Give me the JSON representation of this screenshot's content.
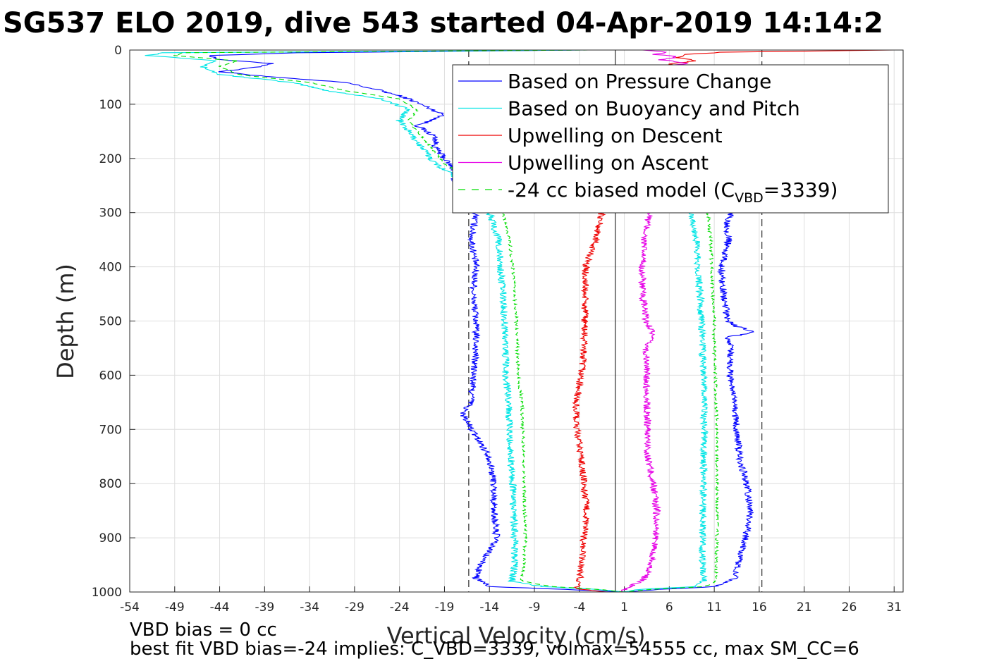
{
  "chart_data": {
    "type": "line",
    "title": "SG537 ELO 2019, dive 543 started 04-Apr-2019 14:14:2",
    "xlabel": "Vertical Velocity (cm/s)",
    "ylabel": "Depth (m)",
    "xlim": [
      -54,
      32
    ],
    "ylim": [
      0,
      1000
    ],
    "y_reversed": true,
    "x_ticks": [
      -54,
      -49,
      -44,
      -39,
      -34,
      -29,
      -24,
      -19,
      -14,
      -9,
      -4,
      1,
      6,
      11,
      16,
      21,
      26,
      31
    ],
    "y_ticks": [
      0,
      100,
      200,
      300,
      400,
      500,
      600,
      700,
      800,
      900,
      1000
    ],
    "grid": true,
    "legend_position": "top-right",
    "reference_lines": [
      {
        "x": -16.3,
        "style": "dashed"
      },
      {
        "x": 0,
        "style": "solid"
      },
      {
        "x": 16.3,
        "style": "dashed"
      }
    ],
    "series": [
      {
        "name": "Based on Pressure Change",
        "color": "#0000ff",
        "style": "solid",
        "segments": [
          {
            "depth": [
              0,
              5,
              10,
              18,
              25,
              32,
              40,
              50,
              60,
              75,
              90,
              105,
              120,
              140,
              160,
              180,
              200,
              220,
              240,
              250,
              270,
              290,
              300,
              350,
              400,
              450,
              500,
              550,
              600,
              650,
              670,
              700,
              750,
              800,
              850,
              900,
              950,
              975,
              990,
              995,
              1000
            ],
            "velocity": [
              -4,
              -35,
              -45,
              -44,
              -38,
              -40,
              -44,
              -38,
              -30,
              -26,
              -23,
              -21,
              -19,
              -22,
              -20,
              -20,
              -19,
              -18,
              -18,
              -17,
              -16,
              -15,
              -15.5,
              -16,
              -15.5,
              -15.8,
              -15.5,
              -15.5,
              -15.8,
              -16,
              -17,
              -16,
              -14,
              -13.5,
              -13.5,
              -13.2,
              -15,
              -15.5,
              -14,
              -6,
              1
            ]
          },
          {
            "depth": [
              300,
              320,
              350,
              400,
              450,
              500,
              510,
              520,
              530,
              550,
              600,
              650,
              700,
              750,
              800,
              850,
              900,
              950,
              975,
              990,
              995,
              1000
            ],
            "velocity": [
              12.8,
              12.5,
              12.6,
              11.8,
              12,
              12.5,
              13.5,
              15.5,
              12.5,
              12.8,
              12.8,
              13.2,
              13.5,
              13.8,
              14.6,
              15,
              14.5,
              13.6,
              13.4,
              11.2,
              5,
              1
            ]
          }
        ]
      },
      {
        "name": "Based on Buoyancy and Pitch",
        "color": "#00e5e5",
        "style": "solid",
        "segments": [
          {
            "depth": [
              0,
              5,
              10,
              20,
              30,
              45,
              60,
              75,
              90,
              110,
              130,
              150,
              170,
              190,
              210,
              230,
              250,
              270,
              300,
              350,
              400,
              450,
              500,
              550,
              600,
              650,
              700,
              750,
              800,
              850,
              900,
              950,
              980,
              990,
              995,
              1000
            ],
            "velocity": [
              -3,
              -50,
              -52,
              -44,
              -46,
              -44,
              -36,
              -32,
              -26,
              -23,
              -24,
              -23,
              -22,
              -21,
              -20,
              -18,
              -17,
              -15,
              -14,
              -13,
              -12.8,
              -12.5,
              -12.3,
              -12.2,
              -12.2,
              -11.8,
              -11.8,
              -11.6,
              -11.4,
              -11.3,
              -11.2,
              -11.2,
              -11.5,
              -8,
              -2,
              1
            ]
          },
          {
            "depth": [
              300,
              350,
              400,
              450,
              500,
              550,
              600,
              650,
              700,
              750,
              800,
              850,
              900,
              950,
              980,
              990,
              995,
              1000
            ],
            "velocity": [
              8.5,
              9,
              9.2,
              9.4,
              9.6,
              9.7,
              9.8,
              9.9,
              9.9,
              9.8,
              9.8,
              9.7,
              9.7,
              9.7,
              9.8,
              9,
              3,
              0.5
            ]
          }
        ]
      },
      {
        "name": "Upwelling on Descent",
        "color": "#ee0000",
        "style": "solid",
        "segments": [
          {
            "depth": [
              300,
              350,
              400,
              450,
              500,
              550,
              600,
              650,
              700,
              750,
              800,
              850,
              900,
              950,
              980,
              990,
              995,
              1000
            ],
            "velocity": [
              -1.5,
              -2.2,
              -3.3,
              -3.4,
              -3.4,
              -3.5,
              -3.8,
              -4.4,
              -4.3,
              -3.8,
              -3.5,
              -3.2,
              -3.5,
              -3.8,
              -4,
              -4.2,
              -4,
              -1
            ]
          },
          {
            "depth": [
              0,
              4,
              8,
              14,
              20,
              26,
              32
            ],
            "velocity": [
              31,
              12,
              8,
              7,
              9,
              6,
              8
            ]
          }
        ]
      },
      {
        "name": "Upwelling on Ascent",
        "color": "#e600e6",
        "style": "solid",
        "segments": [
          {
            "depth": [
              300,
              350,
              400,
              450,
              500,
              520,
              550,
              600,
              650,
              700,
              750,
              800,
              850,
              900,
              950,
              980,
              990,
              995,
              1000
            ],
            "velocity": [
              3.8,
              3.2,
              3,
              3,
              3.4,
              4.2,
              3.4,
              3.5,
              3.5,
              3.6,
              3.6,
              4.2,
              4.6,
              4.5,
              4,
              3,
              1.5,
              1,
              0.5
            ]
          },
          {
            "depth": [
              0,
              4,
              8,
              12,
              18,
              24,
              30
            ],
            "velocity": [
              3,
              6,
              4,
              7,
              5,
              8,
              6
            ]
          }
        ]
      },
      {
        "name": "-24 cc biased model (C",
        "name_sub": "VBD",
        "name_suffix": "=3339)",
        "color": "#00dd00",
        "style": "dashed",
        "segments": [
          {
            "depth": [
              0,
              5,
              10,
              20,
              30,
              45,
              60,
              75,
              90,
              110,
              130,
              150,
              170,
              190,
              210,
              230,
              250,
              270,
              300,
              350,
              400,
              450,
              500,
              550,
              600,
              650,
              700,
              750,
              800,
              850,
              900,
              950,
              980,
              990,
              995,
              1000
            ],
            "velocity": [
              -3,
              -48,
              -49,
              -42,
              -44,
              -42,
              -34,
              -30,
              -24,
              -22,
              -23,
              -22,
              -21,
              -20,
              -19,
              -17,
              -16,
              -13.5,
              -12.5,
              -11.8,
              -11.4,
              -11.2,
              -11,
              -10.9,
              -10.8,
              -10.4,
              -10.3,
              -10.2,
              -10.1,
              -10.1,
              -10,
              -10.2,
              -10.4,
              -7,
              -2,
              1
            ]
          },
          {
            "depth": [
              300,
              350,
              400,
              450,
              500,
              550,
              600,
              650,
              700,
              750,
              800,
              850,
              900,
              950,
              980,
              990,
              995,
              1000
            ],
            "velocity": [
              10.3,
              10.6,
              10.7,
              10.8,
              11,
              11,
              11.1,
              11.2,
              11.3,
              11.3,
              11.3,
              11.3,
              11.3,
              11.2,
              11.1,
              10,
              4,
              1
            ]
          }
        ]
      }
    ],
    "annotations": [
      "VBD bias = 0 cc",
      "best fit VBD bias=-24 implies: C_VBD=3339, volmax=54555 cc, max SM_CC=6"
    ]
  }
}
